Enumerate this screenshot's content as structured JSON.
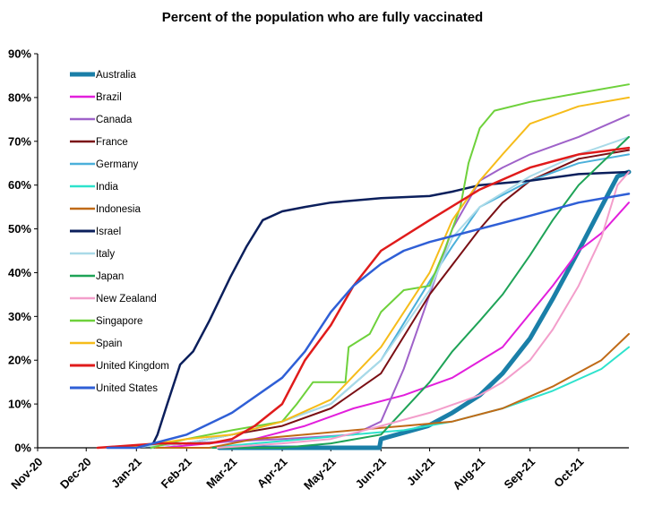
{
  "chart_data": {
    "type": "line",
    "title": "Percent of the population who are fully vaccinated",
    "xlabel": "",
    "ylabel": "",
    "x_ticks": [
      "Nov-20",
      "Dec-20",
      "Jan-21",
      "Feb-21",
      "Mar-21",
      "Apr-21",
      "May-21",
      "Jun-21",
      "Jul-21",
      "Aug-21",
      "Sep-21",
      "Oct-21"
    ],
    "x_range": [
      "2020-11-01",
      "2021-11-01"
    ],
    "y_ticks": [
      "0%",
      "10%",
      "20%",
      "30%",
      "40%",
      "50%",
      "60%",
      "70%",
      "80%",
      "90%"
    ],
    "ylim": [
      0,
      90
    ],
    "grid": false,
    "legend_position": "top-left",
    "series": [
      {
        "name": "Australia",
        "color": "#1a7fa8",
        "width": 5,
        "points": [
          [
            "2021-02-21",
            0
          ],
          [
            "2021-05-31",
            0
          ],
          [
            "2021-06-01",
            2
          ],
          [
            "2021-06-30",
            5
          ],
          [
            "2021-07-15",
            8
          ],
          [
            "2021-08-01",
            12
          ],
          [
            "2021-08-15",
            17
          ],
          [
            "2021-09-01",
            25
          ],
          [
            "2021-09-15",
            34
          ],
          [
            "2021-10-01",
            45
          ],
          [
            "2021-10-15",
            55
          ],
          [
            "2021-10-25",
            62
          ],
          [
            "2021-11-01",
            63
          ]
        ]
      },
      {
        "name": "Brazil",
        "color": "#e21fdc",
        "width": 2,
        "points": [
          [
            "2021-01-17",
            0
          ],
          [
            "2021-02-15",
            1
          ],
          [
            "2021-03-15",
            2
          ],
          [
            "2021-04-15",
            5
          ],
          [
            "2021-05-15",
            9
          ],
          [
            "2021-06-15",
            12
          ],
          [
            "2021-07-15",
            16
          ],
          [
            "2021-08-15",
            23
          ],
          [
            "2021-09-15",
            37
          ],
          [
            "2021-10-01",
            45
          ],
          [
            "2021-10-15",
            49
          ],
          [
            "2021-11-01",
            56
          ]
        ]
      },
      {
        "name": "Canada",
        "color": "#9f62c9",
        "width": 2,
        "points": [
          [
            "2020-12-14",
            0
          ],
          [
            "2021-02-01",
            1
          ],
          [
            "2021-04-01",
            2
          ],
          [
            "2021-05-15",
            3
          ],
          [
            "2021-06-01",
            6
          ],
          [
            "2021-06-15",
            18
          ],
          [
            "2021-07-01",
            35
          ],
          [
            "2021-07-15",
            50
          ],
          [
            "2021-08-01",
            61
          ],
          [
            "2021-08-15",
            64
          ],
          [
            "2021-09-01",
            67
          ],
          [
            "2021-10-01",
            71
          ],
          [
            "2021-11-01",
            76
          ]
        ]
      },
      {
        "name": "France",
        "color": "#7a0f14",
        "width": 2,
        "points": [
          [
            "2020-12-27",
            0
          ],
          [
            "2021-02-01",
            1
          ],
          [
            "2021-03-01",
            3
          ],
          [
            "2021-04-01",
            5
          ],
          [
            "2021-05-01",
            9
          ],
          [
            "2021-06-01",
            17
          ],
          [
            "2021-07-01",
            35
          ],
          [
            "2021-08-01",
            50
          ],
          [
            "2021-08-15",
            56
          ],
          [
            "2021-09-01",
            61
          ],
          [
            "2021-10-01",
            66
          ],
          [
            "2021-11-01",
            68
          ]
        ]
      },
      {
        "name": "Germany",
        "color": "#4bb0da",
        "width": 2,
        "points": [
          [
            "2020-12-27",
            0
          ],
          [
            "2021-02-01",
            1
          ],
          [
            "2021-03-01",
            3
          ],
          [
            "2021-04-01",
            6
          ],
          [
            "2021-05-01",
            10
          ],
          [
            "2021-06-01",
            20
          ],
          [
            "2021-07-01",
            38
          ],
          [
            "2021-07-15",
            46
          ],
          [
            "2021-08-01",
            55
          ],
          [
            "2021-09-01",
            61
          ],
          [
            "2021-10-01",
            65
          ],
          [
            "2021-11-01",
            67
          ]
        ]
      },
      {
        "name": "India",
        "color": "#2de2cc",
        "width": 2,
        "points": [
          [
            "2021-01-16",
            0
          ],
          [
            "2021-02-15",
            0
          ],
          [
            "2021-03-15",
            1
          ],
          [
            "2021-04-15",
            2
          ],
          [
            "2021-05-15",
            3
          ],
          [
            "2021-06-15",
            4
          ],
          [
            "2021-07-15",
            6
          ],
          [
            "2021-08-15",
            9
          ],
          [
            "2021-09-15",
            13
          ],
          [
            "2021-10-15",
            18
          ],
          [
            "2021-11-01",
            23
          ]
        ]
      },
      {
        "name": "Indonesia",
        "color": "#c06a17",
        "width": 2,
        "points": [
          [
            "2021-01-13",
            0
          ],
          [
            "2021-02-15",
            0
          ],
          [
            "2021-03-15",
            2
          ],
          [
            "2021-04-15",
            3
          ],
          [
            "2021-05-15",
            4
          ],
          [
            "2021-06-15",
            5
          ],
          [
            "2021-07-15",
            6
          ],
          [
            "2021-08-15",
            9
          ],
          [
            "2021-09-15",
            14
          ],
          [
            "2021-10-15",
            20
          ],
          [
            "2021-11-01",
            26
          ]
        ]
      },
      {
        "name": "Israel",
        "color": "#0b1f5c",
        "width": 2.5,
        "points": [
          [
            "2021-01-10",
            0
          ],
          [
            "2021-01-14",
            3
          ],
          [
            "2021-01-20",
            10
          ],
          [
            "2021-01-28",
            19
          ],
          [
            "2021-02-05",
            22
          ],
          [
            "2021-02-15",
            29
          ],
          [
            "2021-02-28",
            39
          ],
          [
            "2021-03-10",
            46
          ],
          [
            "2021-03-20",
            52
          ],
          [
            "2021-04-01",
            54
          ],
          [
            "2021-04-15",
            55
          ],
          [
            "2021-05-01",
            56
          ],
          [
            "2021-06-01",
            57
          ],
          [
            "2021-07-01",
            57.5
          ],
          [
            "2021-07-15",
            58.5
          ],
          [
            "2021-08-01",
            60
          ],
          [
            "2021-09-01",
            61
          ],
          [
            "2021-10-01",
            62.5
          ],
          [
            "2021-11-01",
            63
          ]
        ]
      },
      {
        "name": "Italy",
        "color": "#a9dae8",
        "width": 2,
        "points": [
          [
            "2020-12-27",
            0
          ],
          [
            "2021-02-01",
            1
          ],
          [
            "2021-03-01",
            3
          ],
          [
            "2021-04-01",
            6
          ],
          [
            "2021-05-01",
            10
          ],
          [
            "2021-06-01",
            20
          ],
          [
            "2021-07-01",
            36
          ],
          [
            "2021-07-15",
            48
          ],
          [
            "2021-08-01",
            55
          ],
          [
            "2021-09-01",
            62
          ],
          [
            "2021-10-01",
            67
          ],
          [
            "2021-11-01",
            71
          ]
        ]
      },
      {
        "name": "Japan",
        "color": "#1ea357",
        "width": 2,
        "points": [
          [
            "2021-02-17",
            0
          ],
          [
            "2021-04-01",
            0
          ],
          [
            "2021-05-01",
            1
          ],
          [
            "2021-06-01",
            3
          ],
          [
            "2021-07-01",
            15
          ],
          [
            "2021-07-15",
            22
          ],
          [
            "2021-08-01",
            29
          ],
          [
            "2021-08-15",
            35
          ],
          [
            "2021-09-01",
            44
          ],
          [
            "2021-09-15",
            52
          ],
          [
            "2021-10-01",
            60
          ],
          [
            "2021-10-15",
            65
          ],
          [
            "2021-11-01",
            71
          ]
        ]
      },
      {
        "name": "New Zealand",
        "color": "#f39ecb",
        "width": 2,
        "points": [
          [
            "2021-02-20",
            0
          ],
          [
            "2021-04-01",
            1
          ],
          [
            "2021-05-01",
            2
          ],
          [
            "2021-06-01",
            5
          ],
          [
            "2021-07-01",
            8
          ],
          [
            "2021-08-01",
            12
          ],
          [
            "2021-08-15",
            15
          ],
          [
            "2021-09-01",
            20
          ],
          [
            "2021-09-15",
            27
          ],
          [
            "2021-10-01",
            37
          ],
          [
            "2021-10-15",
            48
          ],
          [
            "2021-10-25",
            60
          ],
          [
            "2021-11-01",
            63
          ]
        ]
      },
      {
        "name": "Singapore",
        "color": "#6ed13b",
        "width": 2,
        "points": [
          [
            "2021-01-10",
            0
          ],
          [
            "2021-02-01",
            2
          ],
          [
            "2021-03-01",
            4
          ],
          [
            "2021-04-01",
            6
          ],
          [
            "2021-04-10",
            10
          ],
          [
            "2021-04-20",
            15
          ],
          [
            "2021-05-10",
            15
          ],
          [
            "2021-05-12",
            23
          ],
          [
            "2021-05-25",
            26
          ],
          [
            "2021-06-01",
            31
          ],
          [
            "2021-06-15",
            36
          ],
          [
            "2021-07-01",
            37
          ],
          [
            "2021-07-10",
            45
          ],
          [
            "2021-07-20",
            55
          ],
          [
            "2021-07-25",
            65
          ],
          [
            "2021-08-01",
            73
          ],
          [
            "2021-08-10",
            77
          ],
          [
            "2021-09-01",
            79
          ],
          [
            "2021-10-01",
            81
          ],
          [
            "2021-11-01",
            83
          ]
        ]
      },
      {
        "name": "Spain",
        "color": "#f6bc1a",
        "width": 2,
        "points": [
          [
            "2020-12-27",
            0
          ],
          [
            "2021-02-01",
            2
          ],
          [
            "2021-03-01",
            3
          ],
          [
            "2021-04-01",
            6
          ],
          [
            "2021-05-01",
            11
          ],
          [
            "2021-06-01",
            23
          ],
          [
            "2021-07-01",
            40
          ],
          [
            "2021-07-15",
            52
          ],
          [
            "2021-08-01",
            61
          ],
          [
            "2021-08-15",
            67
          ],
          [
            "2021-09-01",
            74
          ],
          [
            "2021-10-01",
            78
          ],
          [
            "2021-11-01",
            80
          ]
        ]
      },
      {
        "name": "United Kingdom",
        "color": "#e01b1b",
        "width": 2.5,
        "points": [
          [
            "2020-12-08",
            0
          ],
          [
            "2021-01-15",
            1
          ],
          [
            "2021-02-15",
            1
          ],
          [
            "2021-03-01",
            2
          ],
          [
            "2021-03-15",
            5
          ],
          [
            "2021-04-01",
            10
          ],
          [
            "2021-04-15",
            20
          ],
          [
            "2021-05-01",
            28
          ],
          [
            "2021-05-15",
            37
          ],
          [
            "2021-06-01",
            45
          ],
          [
            "2021-07-01",
            52
          ],
          [
            "2021-08-01",
            59
          ],
          [
            "2021-09-01",
            64
          ],
          [
            "2021-10-01",
            67
          ],
          [
            "2021-11-01",
            68.5
          ]
        ]
      },
      {
        "name": "United States",
        "color": "#2f5fd6",
        "width": 2.5,
        "points": [
          [
            "2020-12-14",
            0
          ],
          [
            "2021-01-01",
            0
          ],
          [
            "2021-02-01",
            3
          ],
          [
            "2021-03-01",
            8
          ],
          [
            "2021-04-01",
            16
          ],
          [
            "2021-04-15",
            22
          ],
          [
            "2021-05-01",
            31
          ],
          [
            "2021-05-15",
            37
          ],
          [
            "2021-06-01",
            42
          ],
          [
            "2021-06-15",
            45
          ],
          [
            "2021-07-01",
            47
          ],
          [
            "2021-08-01",
            50
          ],
          [
            "2021-09-01",
            53
          ],
          [
            "2021-10-01",
            56
          ],
          [
            "2021-11-01",
            58
          ]
        ]
      }
    ]
  }
}
